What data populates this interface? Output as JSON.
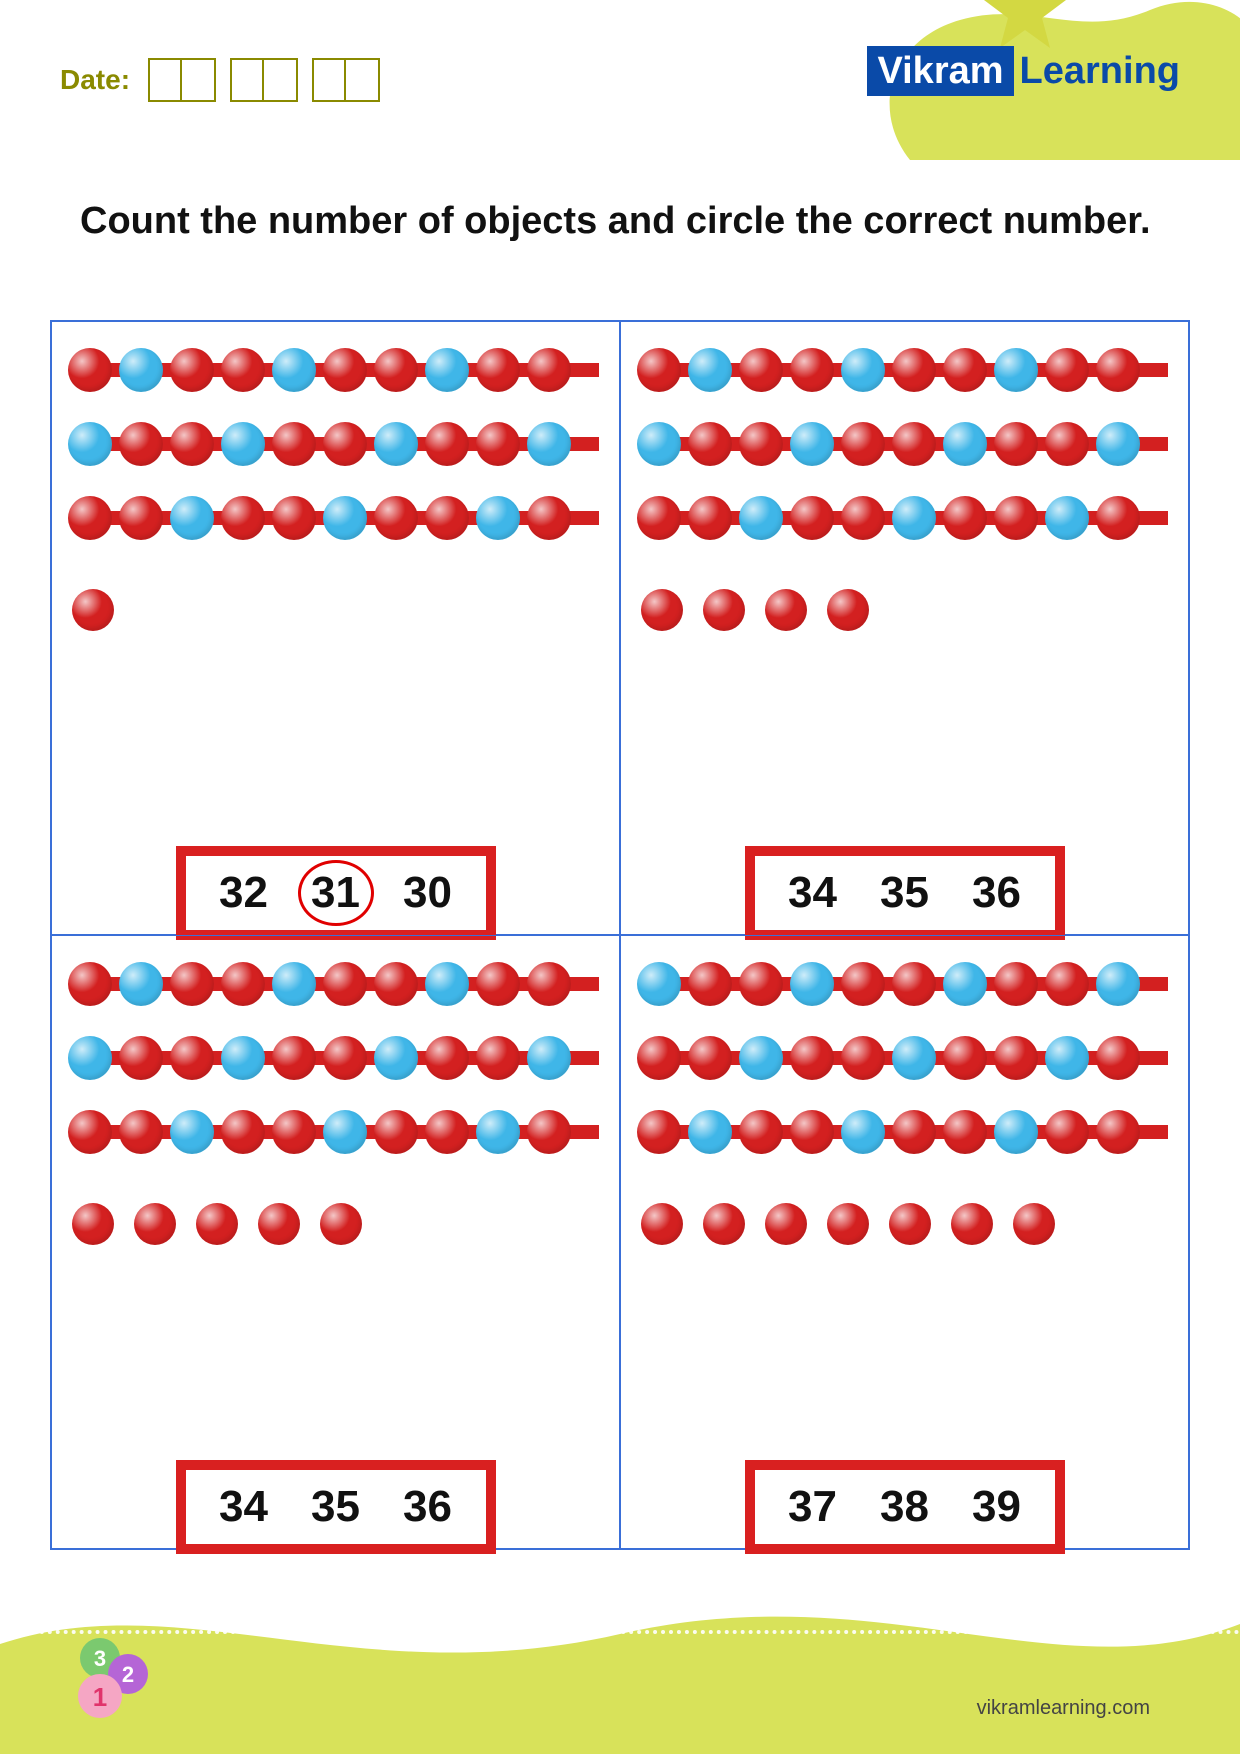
{
  "colors": {
    "red": "#d32020",
    "blue": "#3fb6e8",
    "border_red": "#d92020",
    "grid_border": "#3a6fd8",
    "olive": "#8a8a00",
    "green_bg": "#d8e25a",
    "logo_blue": "#0a4aa8"
  },
  "header": {
    "date_label": "Date:",
    "logo_part1": "Vikram",
    "logo_part2": "Learning"
  },
  "instruction": "Count the number of objects and circle the correct number.",
  "cells": [
    {
      "rows": [
        {
          "bar": true,
          "beads": [
            "red",
            "blue",
            "red",
            "red",
            "blue",
            "red",
            "red",
            "blue",
            "red",
            "red"
          ]
        },
        {
          "bar": true,
          "beads": [
            "blue",
            "red",
            "red",
            "blue",
            "red",
            "red",
            "blue",
            "red",
            "red",
            "blue"
          ]
        },
        {
          "bar": true,
          "beads": [
            "red",
            "red",
            "blue",
            "red",
            "red",
            "blue",
            "red",
            "red",
            "blue",
            "red"
          ]
        },
        {
          "bar": false,
          "beads": [
            "red"
          ]
        }
      ],
      "options": [
        "32",
        "31",
        "30"
      ],
      "circled_index": 1
    },
    {
      "rows": [
        {
          "bar": true,
          "beads": [
            "red",
            "blue",
            "red",
            "red",
            "blue",
            "red",
            "red",
            "blue",
            "red",
            "red"
          ]
        },
        {
          "bar": true,
          "beads": [
            "blue",
            "red",
            "red",
            "blue",
            "red",
            "red",
            "blue",
            "red",
            "red",
            "blue"
          ]
        },
        {
          "bar": true,
          "beads": [
            "red",
            "red",
            "blue",
            "red",
            "red",
            "blue",
            "red",
            "red",
            "blue",
            "red"
          ]
        },
        {
          "bar": false,
          "beads": [
            "red",
            "red",
            "red",
            "red"
          ]
        }
      ],
      "options": [
        "34",
        "35",
        "36"
      ],
      "circled_index": -1
    },
    {
      "rows": [
        {
          "bar": true,
          "beads": [
            "red",
            "blue",
            "red",
            "red",
            "blue",
            "red",
            "red",
            "blue",
            "red",
            "red"
          ]
        },
        {
          "bar": true,
          "beads": [
            "blue",
            "red",
            "red",
            "blue",
            "red",
            "red",
            "blue",
            "red",
            "red",
            "blue"
          ]
        },
        {
          "bar": true,
          "beads": [
            "red",
            "red",
            "blue",
            "red",
            "red",
            "blue",
            "red",
            "red",
            "blue",
            "red"
          ]
        },
        {
          "bar": false,
          "beads": [
            "red",
            "red",
            "red",
            "red",
            "red"
          ]
        }
      ],
      "options": [
        "34",
        "35",
        "36"
      ],
      "circled_index": -1
    },
    {
      "rows": [
        {
          "bar": true,
          "beads": [
            "blue",
            "red",
            "red",
            "blue",
            "red",
            "red",
            "blue",
            "red",
            "red",
            "blue"
          ]
        },
        {
          "bar": true,
          "beads": [
            "red",
            "red",
            "blue",
            "red",
            "red",
            "blue",
            "red",
            "red",
            "blue",
            "red"
          ]
        },
        {
          "bar": true,
          "beads": [
            "red",
            "blue",
            "red",
            "red",
            "blue",
            "red",
            "red",
            "blue",
            "red",
            "red"
          ]
        },
        {
          "bar": false,
          "beads": [
            "red",
            "red",
            "red",
            "red",
            "red",
            "red",
            "red"
          ]
        }
      ],
      "options": [
        "37",
        "38",
        "39"
      ],
      "circled_index": -1
    }
  ],
  "footer": {
    "url": "vikramlearning.com",
    "badge_numbers": [
      "3",
      "2",
      "1"
    ]
  }
}
